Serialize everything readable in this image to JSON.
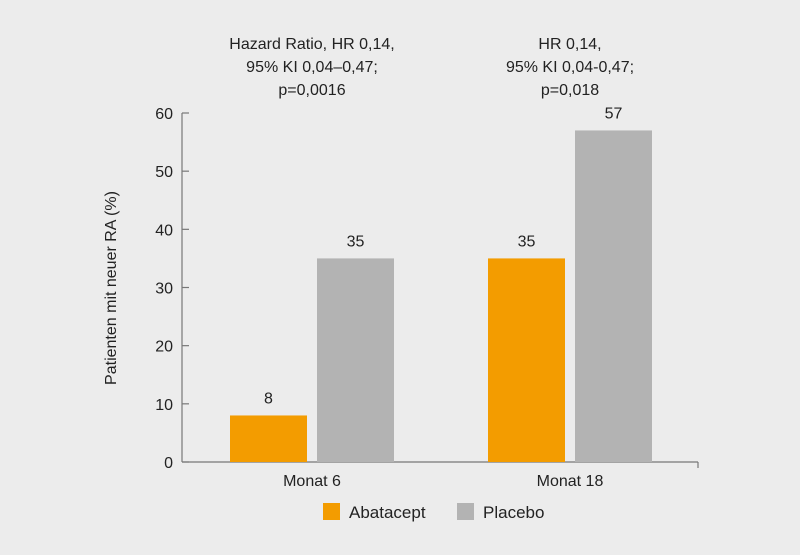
{
  "chart_data": {
    "type": "bar",
    "title": "",
    "xlabel": "",
    "ylabel": "Patienten mit neuer RA (%)",
    "ylim": [
      0,
      60
    ],
    "yticks": [
      "0",
      "10",
      "20",
      "30",
      "40",
      "50",
      "60"
    ],
    "categories": [
      "Monat 6",
      "Monat 18"
    ],
    "series": [
      {
        "name": "Abatacept",
        "color": "#f39c00",
        "values": [
          8,
          35
        ]
      },
      {
        "name": "Placebo",
        "color": "#b3b3b3",
        "values": [
          35,
          57
        ]
      }
    ],
    "annotations": [
      [
        "Hazard Ratio, HR 0,14,",
        "95% KI 0,04–0,47;",
        "p=0,0016"
      ],
      [
        "HR 0,14,",
        "95% KI 0,04-0,47;",
        "p=0,018"
      ]
    ],
    "legend": "bottom-center",
    "grid": false
  }
}
